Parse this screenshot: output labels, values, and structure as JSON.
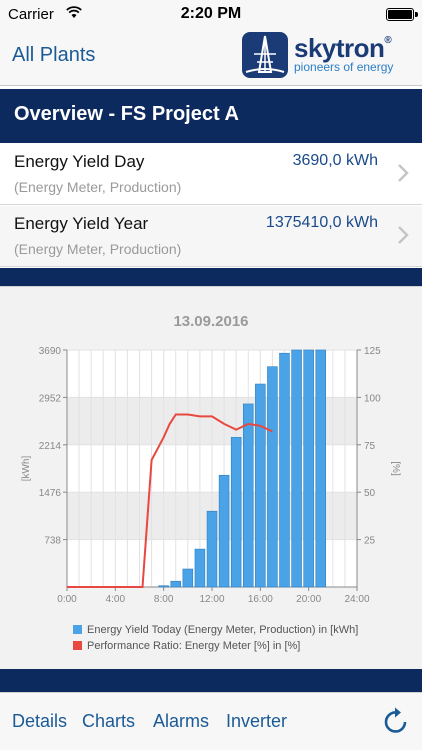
{
  "status_bar": {
    "carrier": "Carrier",
    "time": "2:20 PM"
  },
  "nav": {
    "back_label": "All Plants",
    "logo": {
      "name": "skytron",
      "registered": "®",
      "tagline": "pioneers of energy"
    }
  },
  "section": {
    "title": "Overview - FS Project A"
  },
  "rows": [
    {
      "label": "Energy Yield Day",
      "subtitle": "(Energy Meter, Production)",
      "value": "3690,0 kWh"
    },
    {
      "label": "Energy Yield Year",
      "subtitle": "(Energy Meter, Production)",
      "value": "1375410,0 kWh"
    }
  ],
  "colors": {
    "navy": "#0d2a5f",
    "link": "#1a5a96",
    "bar": "#4aa3e6",
    "line": "#e8483f"
  },
  "chart_data": {
    "type": "bar+line",
    "title": "13.09.2016",
    "x_ticks": [
      "0:00",
      "4:00",
      "8:00",
      "12:00",
      "16:00",
      "20:00",
      "24:00"
    ],
    "x_range": [
      0,
      24
    ],
    "y_left": {
      "label": "[kWh]",
      "ticks": [
        "0",
        "738",
        "1476",
        "2214",
        "2952",
        "3690"
      ],
      "range": [
        0,
        3690
      ]
    },
    "y_right": {
      "label": "[%]",
      "ticks": [
        "25",
        "50",
        "75",
        "100",
        "125"
      ],
      "range": [
        0,
        125
      ]
    },
    "series": [
      {
        "name": "Energy Yield Today (Energy Meter, Production) in [kWh]",
        "kind": "bar",
        "color": "#4aa3e6",
        "x": [
          8,
          9,
          10,
          11,
          12,
          13,
          14,
          15,
          16,
          17,
          18,
          19,
          20,
          21
        ],
        "values": [
          20,
          90,
          280,
          590,
          1180,
          1740,
          2330,
          2850,
          3160,
          3430,
          3640,
          3690,
          3690,
          3690
        ]
      },
      {
        "name": "Performance Ratio: Energy Meter [%] in [%]",
        "kind": "line",
        "color": "#e8483f",
        "x": [
          6.25,
          7.0,
          8.0,
          8.5,
          9.0,
          10.0,
          11.0,
          12.0,
          13.0,
          14.0,
          15.0,
          16.0,
          17.0
        ],
        "values": [
          0,
          67,
          79,
          86,
          91,
          91,
          90,
          90,
          86,
          83,
          86,
          85,
          82
        ]
      }
    ]
  },
  "tabs": [
    {
      "label": "Details"
    },
    {
      "label": "Charts"
    },
    {
      "label": "Alarms"
    },
    {
      "label": "Inverter"
    }
  ]
}
